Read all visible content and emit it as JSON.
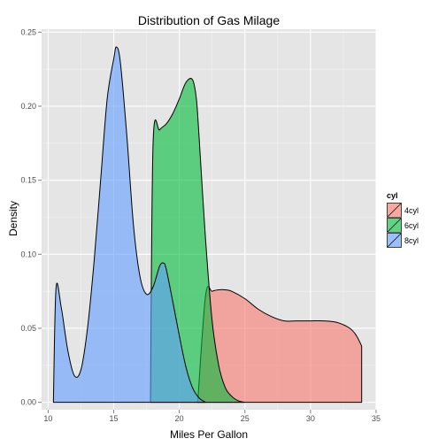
{
  "chart_data": {
    "type": "area",
    "title": "Distribution of Gas Milage",
    "xlabel": "Miles Per Gallon",
    "ylabel": "Density",
    "xlim": [
      9.5,
      35
    ],
    "ylim": [
      -0.005,
      0.252
    ],
    "x_ticks": [
      10,
      15,
      20,
      25,
      30,
      35
    ],
    "y_ticks": [
      0.0,
      0.05,
      0.1,
      0.15,
      0.2,
      0.25
    ],
    "y_tick_labels": [
      "0.00",
      "0.05",
      "0.10",
      "0.15",
      "0.20",
      "0.25"
    ],
    "grid": true,
    "legend": {
      "title": "cyl",
      "position": "right"
    },
    "series": [
      {
        "name": "4cyl",
        "color": "#F8766D",
        "x": [
          21.4,
          22.0,
          22.5,
          23.0,
          23.5,
          24.0,
          25.0,
          26.0,
          27.0,
          28.0,
          29.0,
          30.0,
          31.0,
          32.0,
          33.0,
          33.5,
          33.9
        ],
        "y": [
          0.0,
          0.072,
          0.075,
          0.076,
          0.076,
          0.075,
          0.07,
          0.063,
          0.058,
          0.055,
          0.055,
          0.055,
          0.055,
          0.054,
          0.05,
          0.045,
          0.038
        ]
      },
      {
        "name": "6cyl",
        "color": "#00BA38",
        "x": [
          17.8,
          18.0,
          18.5,
          19.0,
          19.5,
          20.0,
          20.5,
          21.0,
          21.3,
          21.5,
          22.0,
          22.5,
          23.0,
          23.5,
          24.0,
          24.5,
          25.0
        ],
        "y": [
          0.0,
          0.175,
          0.184,
          0.188,
          0.195,
          0.205,
          0.216,
          0.218,
          0.205,
          0.18,
          0.11,
          0.055,
          0.025,
          0.01,
          0.004,
          0.001,
          0.0
        ]
      },
      {
        "name": "8cyl",
        "color": "#619CFF",
        "x": [
          10.4,
          10.6,
          11.0,
          11.5,
          12.0,
          12.5,
          13.0,
          13.5,
          14.0,
          14.5,
          15.0,
          15.2,
          15.5,
          16.0,
          16.5,
          17.0,
          17.5,
          18.0,
          18.5,
          18.8,
          19.0,
          19.5,
          20.0,
          20.5,
          21.0,
          21.5,
          22.0
        ],
        "y": [
          0.0,
          0.077,
          0.064,
          0.035,
          0.018,
          0.022,
          0.05,
          0.095,
          0.15,
          0.205,
          0.232,
          0.24,
          0.23,
          0.18,
          0.12,
          0.085,
          0.073,
          0.078,
          0.092,
          0.094,
          0.09,
          0.068,
          0.045,
          0.024,
          0.01,
          0.003,
          0.0
        ]
      }
    ]
  }
}
